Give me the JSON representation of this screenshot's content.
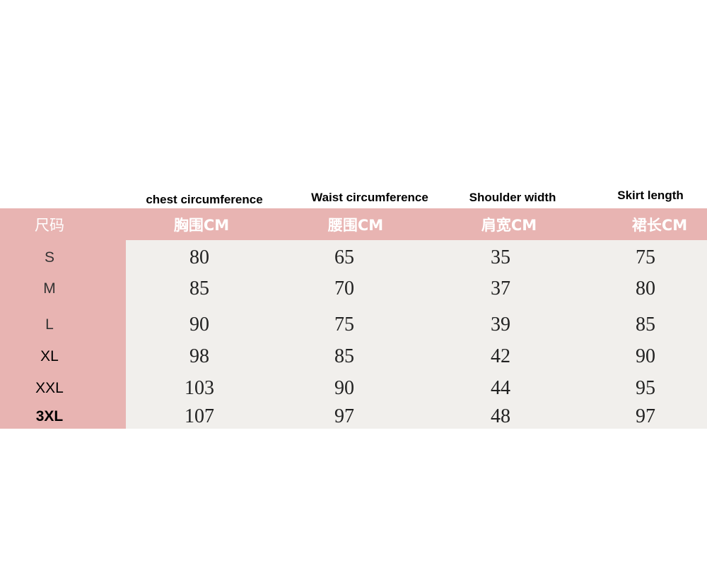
{
  "english_headers": [
    "chest circumference",
    "Waist circumference",
    "Shoulder width",
    "Skirt length"
  ],
  "table": {
    "header": [
      "尺码",
      "胸围CM",
      "腰围CM",
      "肩宽CM",
      "裙长CM"
    ],
    "rows": [
      [
        "S",
        80,
        65,
        35,
        75
      ],
      [
        "M",
        85,
        70,
        37,
        80
      ],
      [
        "L",
        90,
        75,
        39,
        85
      ],
      [
        "XL",
        98,
        85,
        42,
        90
      ],
      [
        "XXL",
        103,
        90,
        44,
        95
      ],
      [
        "3XL",
        107,
        97,
        48,
        97
      ]
    ]
  }
}
